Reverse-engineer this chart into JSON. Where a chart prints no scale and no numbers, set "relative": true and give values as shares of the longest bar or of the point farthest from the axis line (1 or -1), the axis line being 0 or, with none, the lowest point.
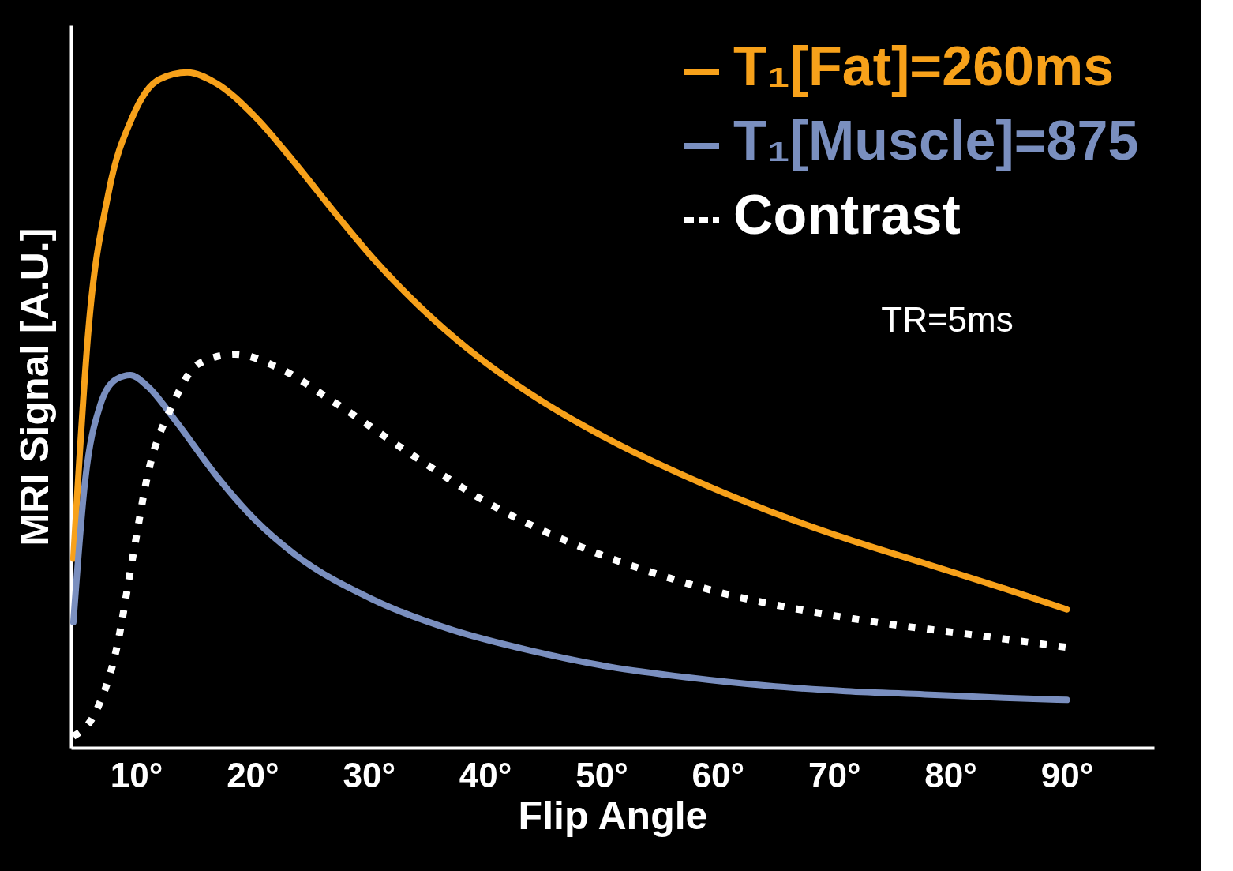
{
  "chart_data": {
    "type": "line",
    "relative": true,
    "xlabel": "Flip Angle",
    "ylabel": "MRI Signal [A.U.]",
    "xlim": [
      4.4,
      97.5
    ],
    "xticks": [
      {
        "value": 10,
        "label": "10°"
      },
      {
        "value": 20,
        "label": "20°"
      },
      {
        "value": 30,
        "label": "30°"
      },
      {
        "value": 40,
        "label": "40°"
      },
      {
        "value": 50,
        "label": "50°"
      },
      {
        "value": 60,
        "label": "60°"
      },
      {
        "value": 70,
        "label": "70°"
      },
      {
        "value": 80,
        "label": "80°"
      },
      {
        "value": 90,
        "label": "90°"
      }
    ],
    "grid": false,
    "legend": "top right",
    "marker": "none",
    "annotations": [
      "TR=5ms"
    ],
    "series": [
      {
        "name": "T₁[Fat]=260ms",
        "color": "#f7a11a",
        "line_style": "solid",
        "x": [
          4.6,
          5.9,
          7.6,
          9.7,
          12.0,
          14.4,
          16.8,
          20.2,
          23.6,
          27.0,
          30.3,
          34.4,
          38.5,
          43.9,
          50.7,
          57.5,
          64.2,
          71.0,
          77.8,
          84.6,
          90.0
        ],
        "values": [
          0.28,
          0.62,
          0.82,
          0.935,
          0.99,
          1.0,
          0.985,
          0.935,
          0.867,
          0.794,
          0.726,
          0.653,
          0.591,
          0.524,
          0.456,
          0.4,
          0.352,
          0.31,
          0.273,
          0.236,
          0.205
        ]
      },
      {
        "name": "T₁[Muscle]=875",
        "color": "#7a8fbf",
        "line_style": "solid",
        "x": [
          4.6,
          5.6,
          6.9,
          8.3,
          9.5,
          11.0,
          13.4,
          16.8,
          20.2,
          23.6,
          30.3,
          37.1,
          43.9,
          50.7,
          57.5,
          64.2,
          71.0,
          77.8,
          84.6,
          90.0
        ],
        "values": [
          0.186,
          0.394,
          0.507,
          0.546,
          0.552,
          0.535,
          0.484,
          0.405,
          0.338,
          0.287,
          0.22,
          0.175,
          0.144,
          0.12,
          0.104,
          0.092,
          0.084,
          0.079,
          0.074,
          0.071
        ]
      },
      {
        "name": "Contrast",
        "color": "#ffffff",
        "line_style": "dotted",
        "x": [
          4.6,
          6.6,
          8.3,
          9.7,
          11.0,
          13.1,
          15.4,
          18.5,
          22.2,
          27.0,
          33.7,
          40.5,
          47.3,
          54.1,
          60.9,
          67.6,
          74.4,
          81.2,
          89.9
        ],
        "values": [
          0.017,
          0.056,
          0.146,
          0.282,
          0.405,
          0.507,
          0.569,
          0.583,
          0.563,
          0.512,
          0.434,
          0.36,
          0.304,
          0.261,
          0.227,
          0.203,
          0.184,
          0.169,
          0.149
        ]
      }
    ]
  }
}
